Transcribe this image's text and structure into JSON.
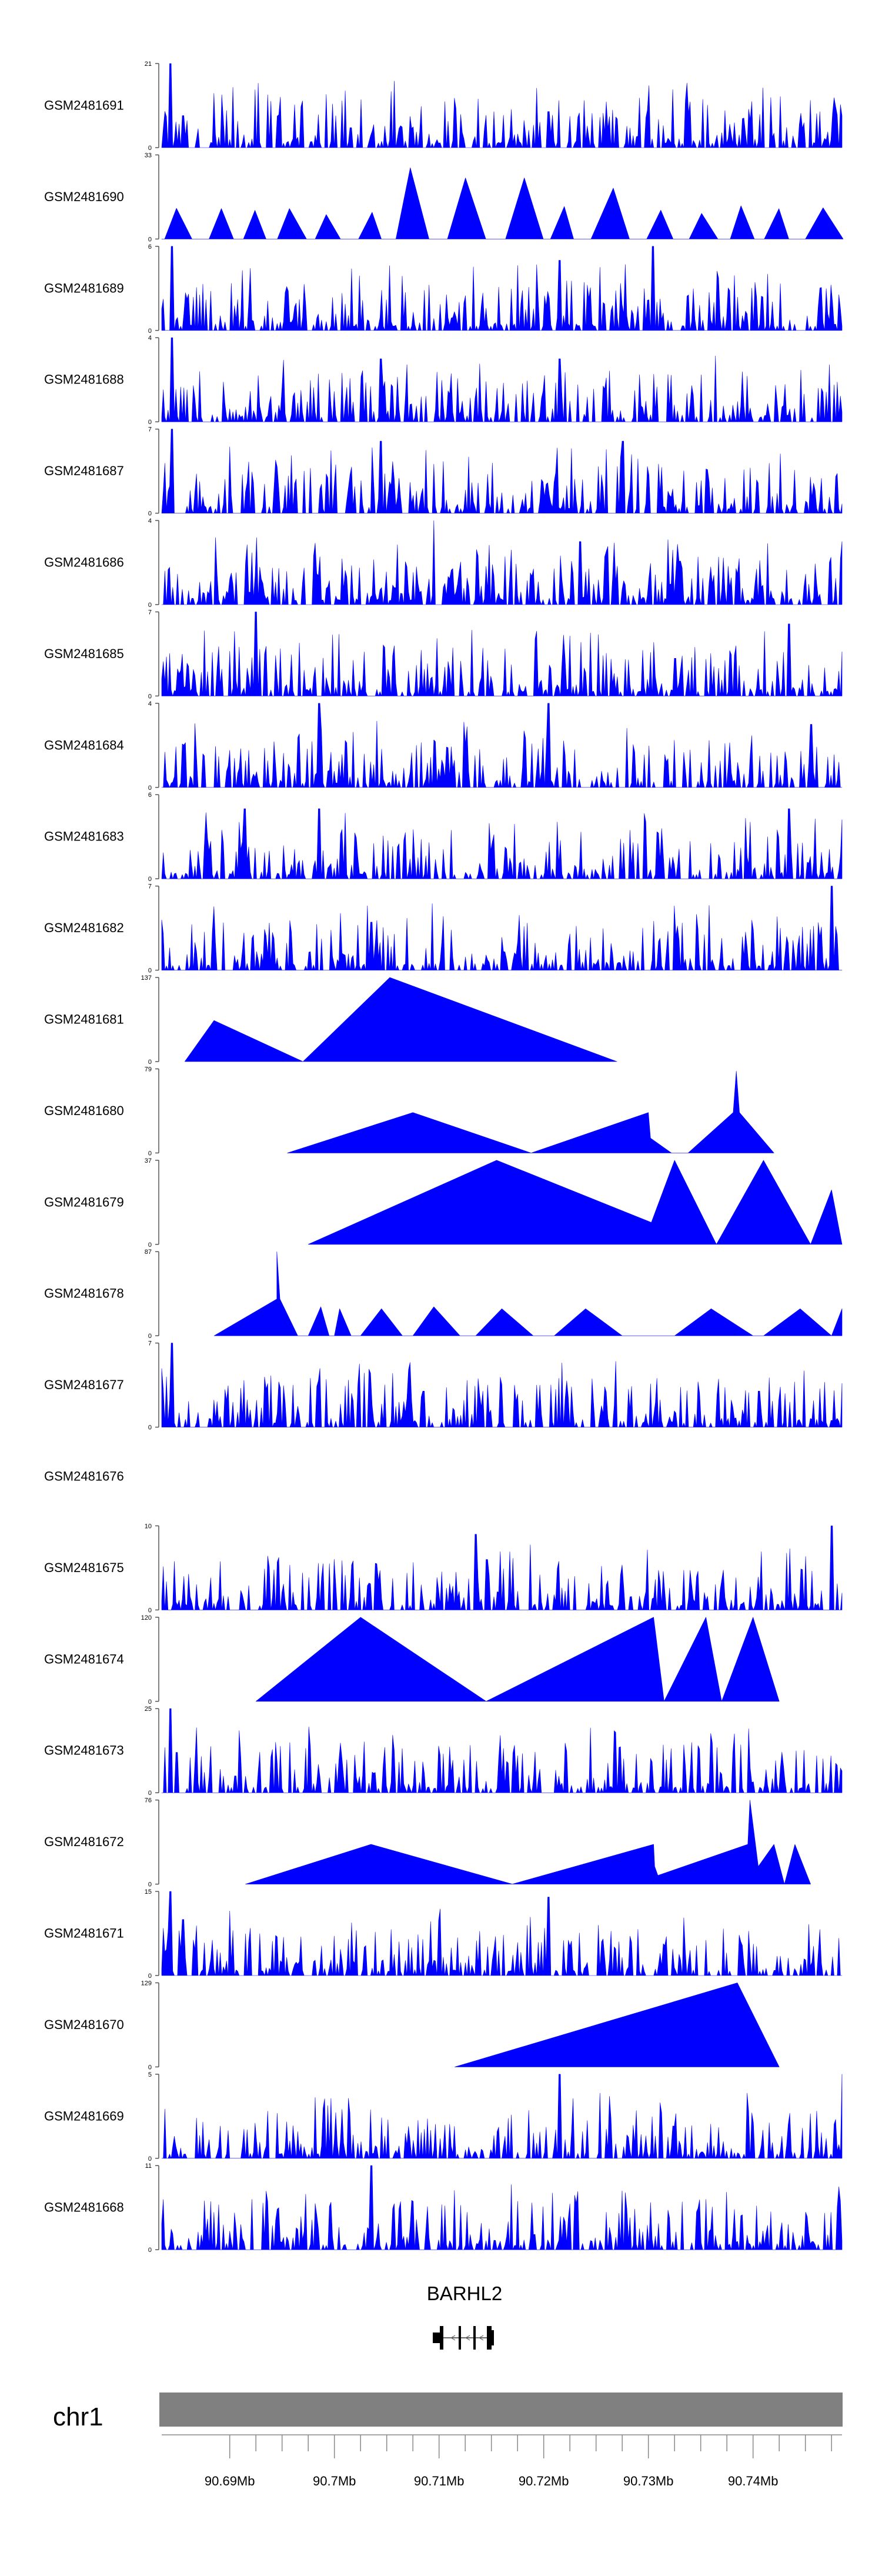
{
  "chart_data": {
    "type": "area",
    "title": "",
    "xlabel": "",
    "ylabel": "",
    "fill_color": "#0000ff",
    "x_range_mb": [
      90.6835,
      90.7485
    ],
    "tracks": [
      {
        "name": "GSM2481691",
        "ymax": 21,
        "pattern": "noise",
        "seed": 101,
        "peaks": [
          [
            90.6843,
            21
          ],
          [
            90.6855,
            8
          ],
          [
            90.7015,
            5
          ],
          [
            90.7205,
            9
          ],
          [
            90.7485,
            8
          ]
        ]
      },
      {
        "name": "GSM2481690",
        "ymax": 33,
        "pattern": "tri",
        "seed": 102,
        "peaks": [
          [
            90.7095,
            28
          ],
          [
            90.7125,
            20
          ],
          [
            90.7155,
            24
          ],
          [
            90.7285,
            20
          ]
        ]
      },
      {
        "name": "GSM2481689",
        "ymax": 6,
        "pattern": "noise",
        "seed": 103,
        "peaks": [
          [
            90.6845,
            6
          ],
          [
            90.7215,
            5
          ],
          [
            90.7305,
            6
          ]
        ]
      },
      {
        "name": "GSM2481688",
        "ymax": 4,
        "pattern": "noise",
        "seed": 104,
        "peaks": [
          [
            90.6845,
            4
          ],
          [
            90.7045,
            3
          ],
          [
            90.7215,
            3
          ]
        ]
      },
      {
        "name": "GSM2481687",
        "ymax": 7,
        "pattern": "noise",
        "seed": 105,
        "peaks": [
          [
            90.6845,
            7
          ],
          [
            90.7045,
            6
          ],
          [
            90.7275,
            6
          ]
        ]
      },
      {
        "name": "GSM2481686",
        "ymax": 4,
        "pattern": "noise",
        "seed": 106,
        "peaks": [
          [
            90.7095,
            4
          ],
          [
            90.7235,
            3
          ],
          [
            90.7485,
            3
          ]
        ]
      },
      {
        "name": "GSM2481685",
        "ymax": 7,
        "pattern": "noise",
        "seed": 107,
        "peaks": [
          [
            90.6925,
            7
          ],
          [
            90.7225,
            5
          ],
          [
            90.7435,
            6
          ]
        ]
      },
      {
        "name": "GSM2481684",
        "ymax": 4,
        "pattern": "noise",
        "seed": 108,
        "peaks": [
          [
            90.6985,
            4
          ],
          [
            90.7205,
            4
          ],
          [
            90.7455,
            3
          ]
        ]
      },
      {
        "name": "GSM2481683",
        "ymax": 6,
        "pattern": "noise",
        "seed": 109,
        "peaks": [
          [
            90.6915,
            5
          ],
          [
            90.6985,
            5
          ],
          [
            90.7435,
            5
          ]
        ]
      },
      {
        "name": "GSM2481682",
        "ymax": 7,
        "pattern": "noise",
        "seed": 110,
        "peaks": [
          [
            90.7035,
            4
          ],
          [
            90.7475,
            7
          ]
        ]
      },
      {
        "name": "GSM2481681",
        "ymax": 137,
        "pattern": "points",
        "seed": 111,
        "points": [
          [
            90.6857,
            0
          ],
          [
            90.6885,
            67
          ],
          [
            90.697,
            0
          ],
          [
            90.7053,
            137
          ],
          [
            90.727,
            0
          ]
        ]
      },
      {
        "name": "GSM2481680",
        "ymax": 79,
        "pattern": "points",
        "seed": 112,
        "points": [
          [
            90.6955,
            0
          ],
          [
            90.7075,
            38
          ],
          [
            90.7188,
            0
          ],
          [
            90.73,
            38
          ],
          [
            90.7302,
            14
          ],
          [
            90.7322,
            0
          ],
          [
            90.7338,
            0
          ],
          [
            90.7381,
            38
          ],
          [
            90.7384,
            77
          ],
          [
            90.7387,
            38
          ],
          [
            90.742,
            0
          ]
        ]
      },
      {
        "name": "GSM2481679",
        "ymax": 37,
        "pattern": "points",
        "seed": 113,
        "points": [
          [
            90.6975,
            0
          ],
          [
            90.7155,
            37
          ],
          [
            90.7355,
            0
          ],
          [
            90.7305,
            0
          ],
          [
            90.7295,
            0
          ],
          [
            90.7325,
            37
          ],
          [
            90.7365,
            0
          ],
          [
            90.741,
            37
          ],
          [
            90.7455,
            0
          ],
          [
            90.7475,
            24
          ],
          [
            90.7485,
            0
          ]
        ]
      },
      {
        "name": "GSM2481678",
        "ymax": 87,
        "pattern": "points",
        "seed": 114,
        "points": [
          [
            90.6885,
            0
          ],
          [
            90.6945,
            38
          ],
          [
            90.6945,
            87
          ],
          [
            90.6948,
            38
          ],
          [
            90.6965,
            0
          ],
          [
            90.6975,
            0
          ],
          [
            90.6987,
            30
          ],
          [
            90.6995,
            0
          ],
          [
            90.7,
            0
          ],
          [
            90.7005,
            28
          ],
          [
            90.7016,
            0
          ],
          [
            90.7025,
            0
          ],
          [
            90.7045,
            28
          ],
          [
            90.7065,
            0
          ],
          [
            90.7075,
            0
          ],
          [
            90.7095,
            30
          ],
          [
            90.712,
            0
          ],
          [
            90.7135,
            0
          ],
          [
            90.716,
            28
          ],
          [
            90.719,
            0
          ],
          [
            90.721,
            0
          ],
          [
            90.724,
            28
          ],
          [
            90.7275,
            0
          ],
          [
            90.7325,
            0
          ],
          [
            90.736,
            28
          ],
          [
            90.74,
            0
          ],
          [
            90.741,
            0
          ],
          [
            90.7445,
            28
          ],
          [
            90.7475,
            0
          ],
          [
            90.7485,
            28
          ],
          [
            90.7485,
            0
          ]
        ]
      },
      {
        "name": "GSM2481677",
        "ymax": 7,
        "pattern": "noise",
        "seed": 115,
        "peaks": [
          [
            90.6845,
            7
          ],
          [
            90.7085,
            3
          ],
          [
            90.7405,
            3
          ]
        ]
      },
      {
        "name": "GSM2481676",
        "ymax": null,
        "pattern": "empty",
        "seed": 116
      },
      {
        "name": "GSM2481675",
        "ymax": 10,
        "pattern": "noise",
        "seed": 117,
        "peaks": [
          [
            90.7135,
            9
          ],
          [
            90.7145,
            6
          ],
          [
            90.7475,
            10
          ]
        ]
      },
      {
        "name": "GSM2481674",
        "ymax": 120,
        "pattern": "points",
        "seed": 118,
        "points": [
          [
            90.6925,
            0
          ],
          [
            90.7025,
            120
          ],
          [
            90.7145,
            0
          ],
          [
            90.7305,
            120
          ],
          [
            90.7315,
            0
          ],
          [
            90.7355,
            120
          ],
          [
            90.737,
            0
          ],
          [
            90.74,
            120
          ],
          [
            90.7425,
            0
          ]
        ]
      },
      {
        "name": "GSM2481673",
        "ymax": 25,
        "pattern": "noise",
        "seed": 119,
        "peaks": [
          [
            90.6843,
            25
          ],
          [
            90.685,
            12
          ],
          [
            90.6905,
            5
          ]
        ]
      },
      {
        "name": "GSM2481672",
        "ymax": 76,
        "pattern": "points",
        "seed": 120,
        "points": [
          [
            90.6915,
            0
          ],
          [
            90.7035,
            36
          ],
          [
            90.717,
            0
          ],
          [
            90.7305,
            36
          ],
          [
            90.7306,
            16
          ],
          [
            90.7312,
            0
          ],
          [
            90.7285,
            0
          ],
          [
            90.7395,
            36
          ],
          [
            90.7397,
            76
          ],
          [
            90.7405,
            16
          ],
          [
            90.742,
            36
          ],
          [
            90.743,
            0
          ],
          [
            90.744,
            36
          ],
          [
            90.7455,
            0
          ]
        ]
      },
      {
        "name": "GSM2481671",
        "ymax": 15,
        "pattern": "noise",
        "seed": 121,
        "peaks": [
          [
            90.6843,
            15
          ],
          [
            90.6855,
            10
          ],
          [
            90.7205,
            14
          ]
        ]
      },
      {
        "name": "GSM2481670",
        "ymax": 129,
        "pattern": "points",
        "seed": 122,
        "points": [
          [
            90.7115,
            0
          ],
          [
            90.7385,
            129
          ],
          [
            90.7425,
            0
          ]
        ]
      },
      {
        "name": "GSM2481669",
        "ymax": 5,
        "pattern": "noise",
        "seed": 123,
        "peaks": [
          [
            90.7215,
            5
          ],
          [
            90.7485,
            5
          ]
        ]
      },
      {
        "name": "GSM2481668",
        "ymax": 11,
        "pattern": "noise",
        "seed": 124,
        "peaks": [
          [
            90.7035,
            11
          ],
          [
            90.7225,
            6
          ]
        ]
      }
    ],
    "gene": {
      "name": "BARHL2",
      "start": 90.7095,
      "end": 90.7165,
      "strand": "-"
    },
    "chromosome": "chr1",
    "x_ticks": [
      {
        "value": 90.69,
        "label": "90.69Mb"
      },
      {
        "value": 90.7,
        "label": "90.7Mb"
      },
      {
        "value": 90.71,
        "label": "90.71Mb"
      },
      {
        "value": 90.72,
        "label": "90.72Mb"
      },
      {
        "value": 90.73,
        "label": "90.73Mb"
      },
      {
        "value": 90.74,
        "label": "90.74Mb"
      }
    ]
  }
}
